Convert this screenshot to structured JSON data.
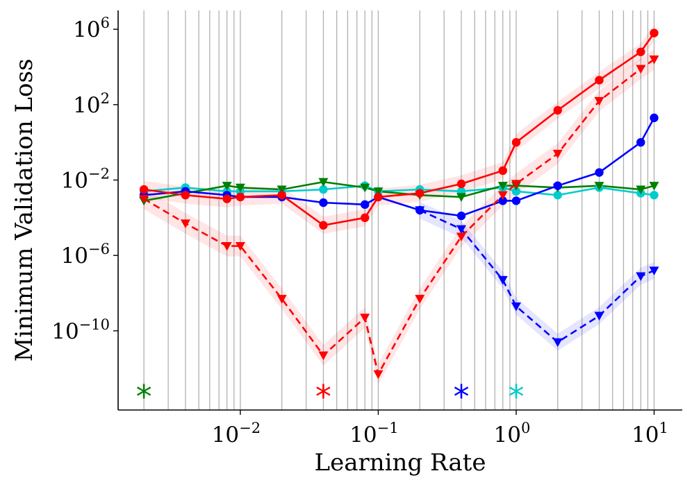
{
  "chart_data": {
    "type": "line",
    "x_scale": "log",
    "y_scale": "log",
    "xlabel": "Learning Rate",
    "ylabel": "Minimum Validation Loss",
    "xlim": [
      0.0013,
      16
    ],
    "ylim_log10": [
      -14.2,
      7.0
    ],
    "grid": "vertical lines at each learning rate",
    "grid_x": [
      0.002,
      0.003,
      0.004,
      0.005,
      0.006,
      0.007,
      0.008,
      0.009,
      0.01,
      0.02,
      0.03,
      0.04,
      0.05,
      0.06,
      0.07,
      0.08,
      0.09,
      0.1,
      0.2,
      0.3,
      0.4,
      0.5,
      0.6,
      0.7,
      0.8,
      0.9,
      1,
      2,
      3,
      4,
      5,
      6,
      7,
      8,
      9,
      10
    ],
    "x_ticks": [
      {
        "value": 0.01,
        "base": "10",
        "exp": "−2"
      },
      {
        "value": 0.1,
        "base": "10",
        "exp": "−1"
      },
      {
        "value": 1,
        "base": "10",
        "exp": "0"
      },
      {
        "value": 10,
        "base": "10",
        "exp": "1"
      }
    ],
    "y_ticks": [
      {
        "log10": 6,
        "base": "10",
        "exp": "6"
      },
      {
        "log10": 2,
        "base": "10",
        "exp": "2"
      },
      {
        "log10": -2,
        "base": "10",
        "exp": "−2"
      },
      {
        "log10": -6,
        "base": "10",
        "exp": "−6"
      },
      {
        "log10": -10,
        "base": "10",
        "exp": "−10"
      }
    ],
    "series": [
      {
        "name": "red-solid",
        "color": "#ff0000",
        "dash": false,
        "marker": "circle",
        "x": [
          0.002,
          0.004,
          0.008,
          0.01,
          0.02,
          0.04,
          0.08,
          0.1,
          0.2,
          0.4,
          0.8,
          1,
          2,
          4,
          8,
          10
        ],
        "log10_y": [
          -2.5,
          -2.8,
          -3.0,
          -2.9,
          -2.8,
          -4.4,
          -4.0,
          -2.9,
          -2.7,
          -2.2,
          -1.5,
          0.0,
          1.7,
          3.3,
          4.8,
          5.8
        ]
      },
      {
        "name": "red-dashed",
        "color": "#ff0000",
        "dash": true,
        "marker": "triangle-down",
        "x": [
          0.002,
          0.004,
          0.008,
          0.01,
          0.02,
          0.04,
          0.08,
          0.1,
          0.2,
          0.4,
          0.8,
          1,
          2,
          4,
          8,
          10
        ],
        "log10_y": [
          -3.0,
          -4.3,
          -5.5,
          -5.5,
          -8.3,
          -11.3,
          -9.3,
          -12.3,
          -8.3,
          -5.0,
          -2.8,
          -2.2,
          -0.6,
          2.2,
          3.9,
          4.4
        ]
      },
      {
        "name": "blue-solid",
        "color": "#0000ff",
        "dash": false,
        "marker": "circle",
        "x": [
          0.002,
          0.004,
          0.008,
          0.01,
          0.02,
          0.04,
          0.08,
          0.1,
          0.2,
          0.4,
          0.8,
          1,
          2,
          4,
          8,
          10
        ],
        "log10_y": [
          -2.8,
          -2.6,
          -2.8,
          -2.9,
          -2.9,
          -3.2,
          -3.3,
          -2.9,
          -3.6,
          -3.9,
          -3.1,
          -3.1,
          -2.3,
          -1.6,
          0.0,
          1.3
        ]
      },
      {
        "name": "blue-dashed",
        "color": "#0000ff",
        "dash": true,
        "marker": "triangle-down",
        "x": [
          0.2,
          0.4,
          0.8,
          1,
          2,
          4,
          8,
          10
        ],
        "log10_y": [
          -3.6,
          -4.6,
          -7.3,
          -8.7,
          -10.6,
          -9.2,
          -7.1,
          -6.8
        ]
      },
      {
        "name": "cyan",
        "color": "#00cccc",
        "dash": false,
        "marker": "circle",
        "x": [
          0.002,
          0.004,
          0.008,
          0.01,
          0.02,
          0.04,
          0.08,
          0.1,
          0.2,
          0.4,
          0.8,
          1,
          2,
          4,
          8,
          10
        ],
        "log10_y": [
          -2.6,
          -2.4,
          -2.6,
          -2.6,
          -2.6,
          -2.5,
          -2.3,
          -2.6,
          -2.5,
          -2.6,
          -2.4,
          -2.6,
          -2.8,
          -2.4,
          -2.7,
          -2.8
        ]
      },
      {
        "name": "green",
        "color": "#008000",
        "dash": false,
        "marker": "triangle-down",
        "x": [
          0.002,
          0.004,
          0.008,
          0.01,
          0.02,
          0.04,
          0.08,
          0.1,
          0.2,
          0.4,
          0.8,
          1,
          2,
          4,
          8,
          10
        ],
        "log10_y": [
          -3.1,
          -2.7,
          -2.3,
          -2.4,
          -2.5,
          -2.1,
          -2.4,
          -2.6,
          -2.8,
          -2.9,
          -2.3,
          -2.3,
          -2.4,
          -2.3,
          -2.5,
          -2.3
        ]
      }
    ],
    "annotations": [
      {
        "text": "*",
        "x": 0.002,
        "color": "#008000"
      },
      {
        "text": "*",
        "x": 0.04,
        "color": "#ff0000"
      },
      {
        "text": "*",
        "x": 0.4,
        "color": "#0000ff"
      },
      {
        "text": "*",
        "x": 1,
        "color": "#00cccc"
      }
    ]
  }
}
